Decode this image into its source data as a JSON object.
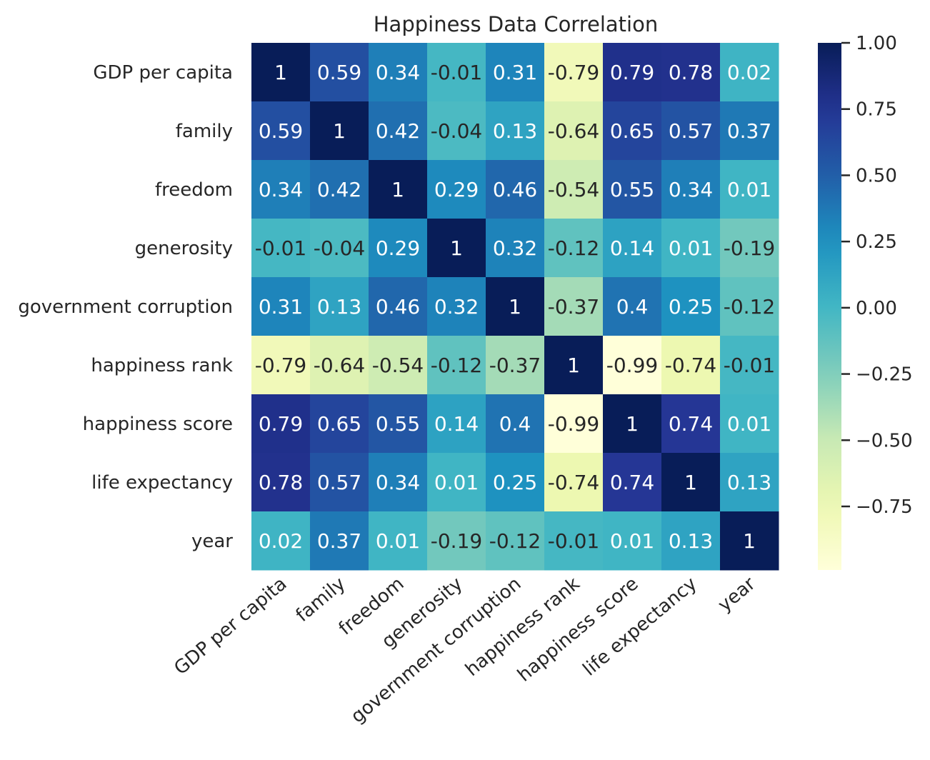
{
  "chart_data": {
    "type": "heatmap",
    "title": "Happiness Data Correlation",
    "colormap": "YlGnBu",
    "rows": [
      "GDP per capita",
      "family",
      "freedom",
      "generosity",
      "government corruption",
      "happiness rank",
      "happiness score",
      "life expectancy",
      "year"
    ],
    "columns": [
      "GDP per capita",
      "family",
      "freedom",
      "generosity",
      "government corruption",
      "happiness rank",
      "happiness score",
      "life expectancy",
      "year"
    ],
    "values": [
      [
        1,
        0.59,
        0.34,
        -0.01,
        0.31,
        -0.79,
        0.79,
        0.78,
        0.02
      ],
      [
        0.59,
        1,
        0.42,
        -0.04,
        0.13,
        -0.64,
        0.65,
        0.57,
        0.37
      ],
      [
        0.34,
        0.42,
        1,
        0.29,
        0.46,
        -0.54,
        0.55,
        0.34,
        0.01
      ],
      [
        -0.01,
        -0.04,
        0.29,
        1,
        0.32,
        -0.12,
        0.14,
        0.01,
        -0.19
      ],
      [
        0.31,
        0.13,
        0.46,
        0.32,
        1,
        -0.37,
        0.4,
        0.25,
        -0.12
      ],
      [
        -0.79,
        -0.64,
        -0.54,
        -0.12,
        -0.37,
        1,
        -0.99,
        -0.74,
        -0.01
      ],
      [
        0.79,
        0.65,
        0.55,
        0.14,
        0.4,
        -0.99,
        1,
        0.74,
        0.01
      ],
      [
        0.78,
        0.57,
        0.34,
        0.01,
        0.25,
        -0.74,
        0.74,
        1,
        0.13
      ],
      [
        0.02,
        0.37,
        0.01,
        -0.19,
        -0.12,
        -0.01,
        0.01,
        0.13,
        1
      ]
    ],
    "colorbar": {
      "min": -0.99,
      "max": 1.0,
      "ticks": [
        1.0,
        0.75,
        0.5,
        0.25,
        0.0,
        -0.25,
        -0.5,
        -0.75
      ],
      "tick_labels": [
        "1.00",
        "0.75",
        "0.50",
        "0.25",
        "0.00",
        "−0.25",
        "−0.50",
        "−0.75"
      ]
    }
  }
}
